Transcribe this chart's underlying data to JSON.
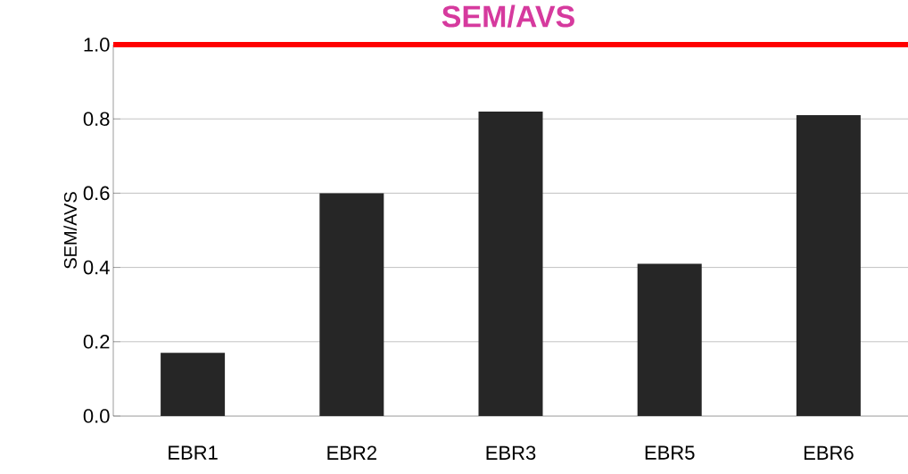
{
  "chart_data": {
    "type": "bar",
    "title": "SEM/AVS",
    "ylabel": "SEM/AVS",
    "categories": [
      "EBR1",
      "EBR2",
      "EBR3",
      "EBR5",
      "EBR6"
    ],
    "values": [
      0.17,
      0.6,
      0.82,
      0.41,
      0.81
    ],
    "color": "#262626",
    "ylim": [
      0,
      1.0
    ],
    "yticks": [
      {
        "value": 0,
        "label": "0.0"
      },
      {
        "value": 0.2,
        "label": "0.2"
      },
      {
        "value": 0.4,
        "label": "0.4"
      },
      {
        "value": 0.6,
        "label": "0.6"
      },
      {
        "value": 0.8,
        "label": "0.8"
      },
      {
        "value": 1.0,
        "label": "1.0"
      }
    ],
    "grid": "y",
    "ref_lines": [
      {
        "axis": "y",
        "value": 1.0,
        "color": "#ff0000"
      }
    ]
  }
}
